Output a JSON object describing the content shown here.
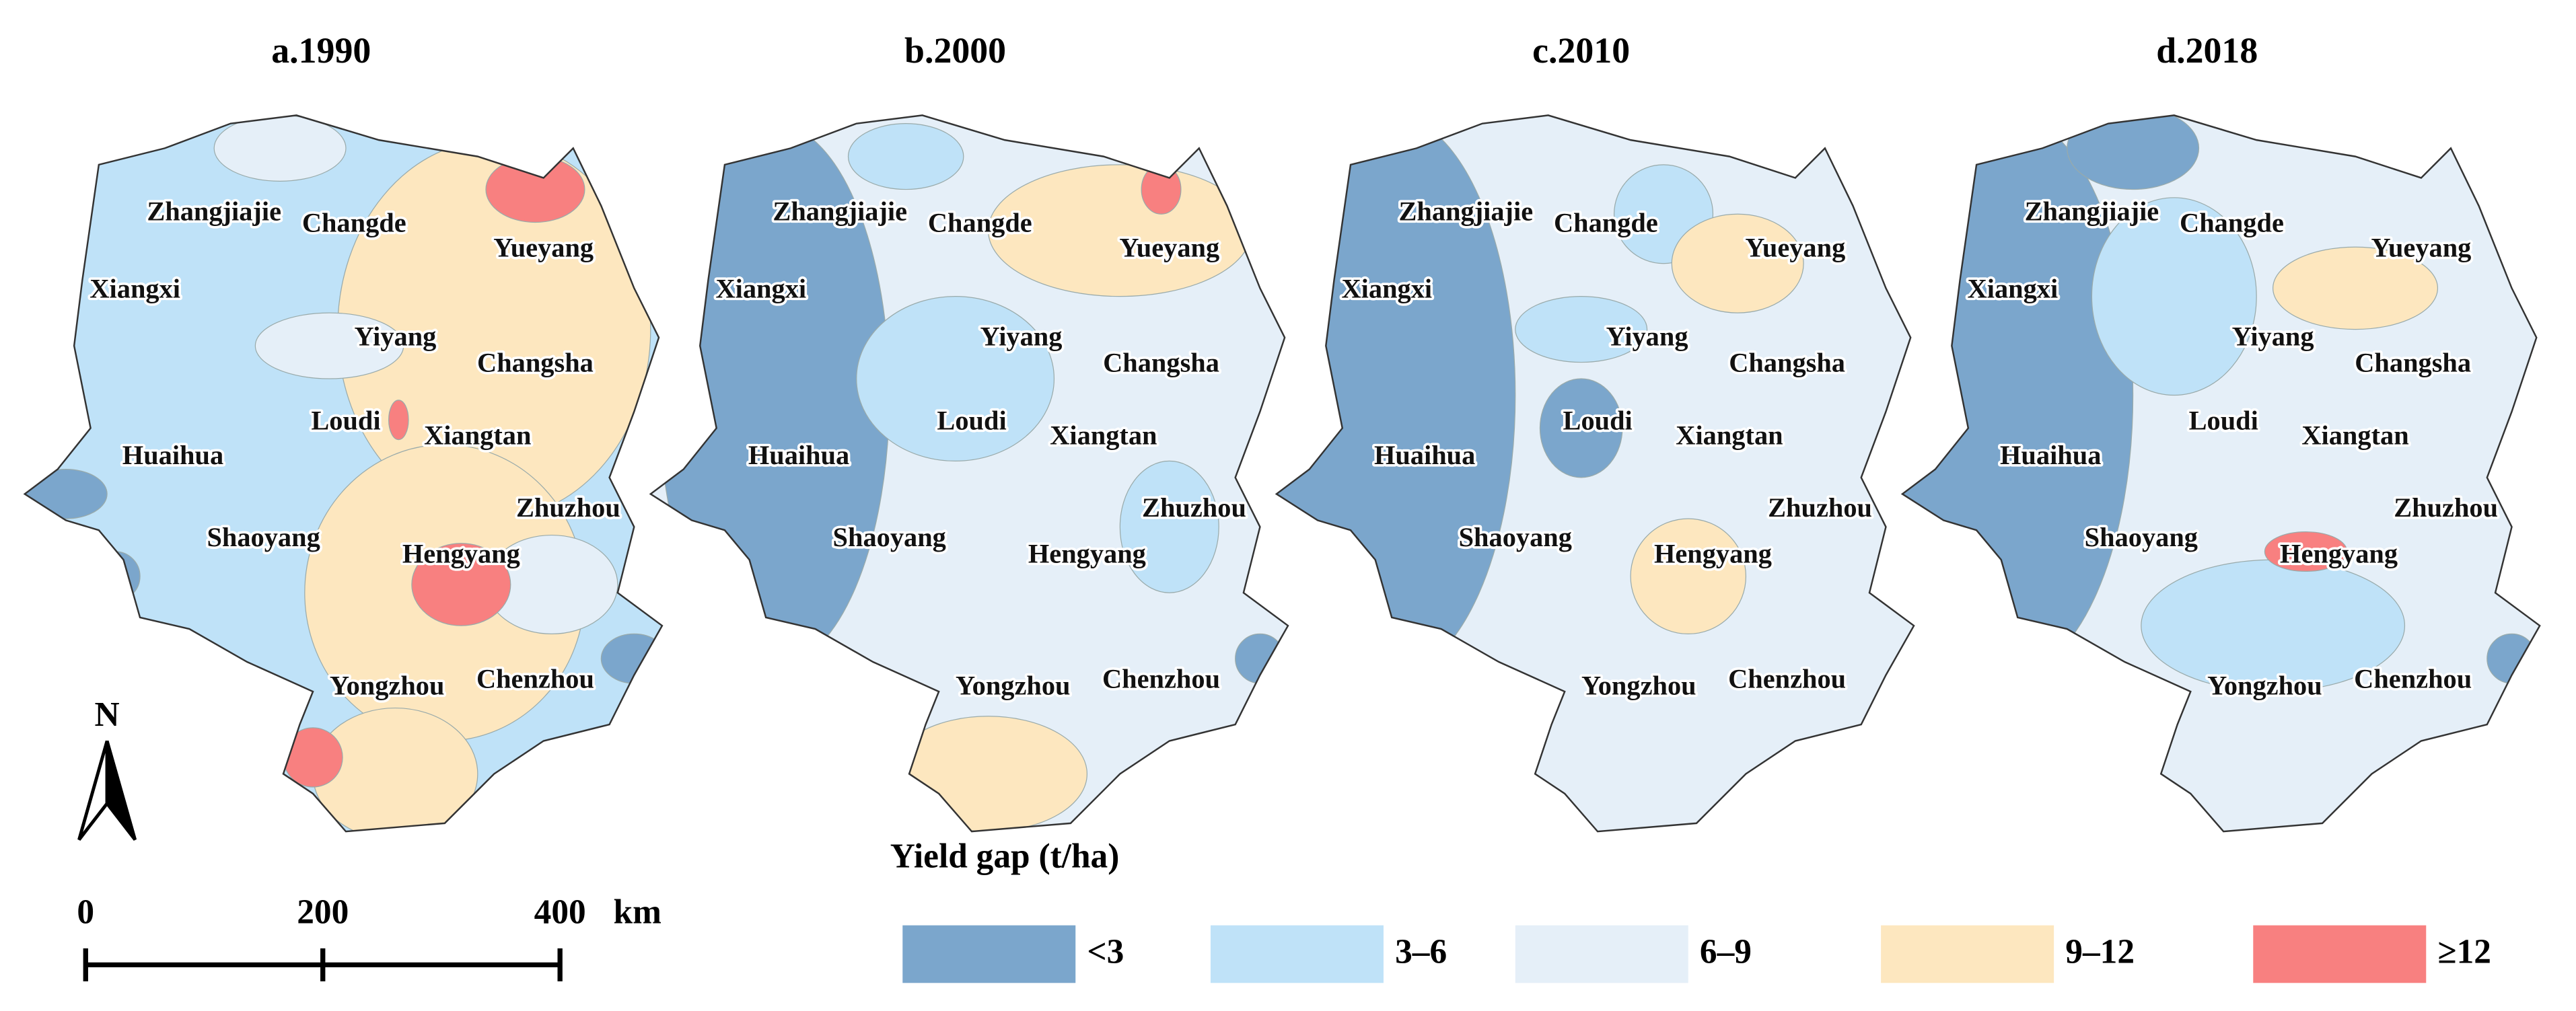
{
  "panels": [
    {
      "title": "a.1990"
    },
    {
      "title": "b.2000"
    },
    {
      "title": "c.2010"
    },
    {
      "title": "d.2018"
    }
  ],
  "cities": [
    "Zhangjiajie",
    "Changde",
    "Yueyang",
    "Xiangxi",
    "Yiyang",
    "Changsha",
    "Loudi",
    "Xiangtan",
    "Huaihua",
    "Zhuzhou",
    "Shaoyang",
    "Hengyang",
    "Yongzhou",
    "Chenzhou"
  ],
  "north": "N",
  "scale_bar": {
    "ticks": [
      "0",
      "200",
      "400"
    ],
    "unit": "km"
  },
  "legend": {
    "title": "Yield gap (t/ha)",
    "items": [
      {
        "label": "<3",
        "color": "#7ba6cc"
      },
      {
        "label": "3–6",
        "color": "#bfe2f8"
      },
      {
        "label": "6–9",
        "color": "#e5eff8"
      },
      {
        "label": "9–12",
        "color": "#fde7bf"
      },
      {
        "label": "≥12",
        "color": "#f88080"
      }
    ]
  }
}
